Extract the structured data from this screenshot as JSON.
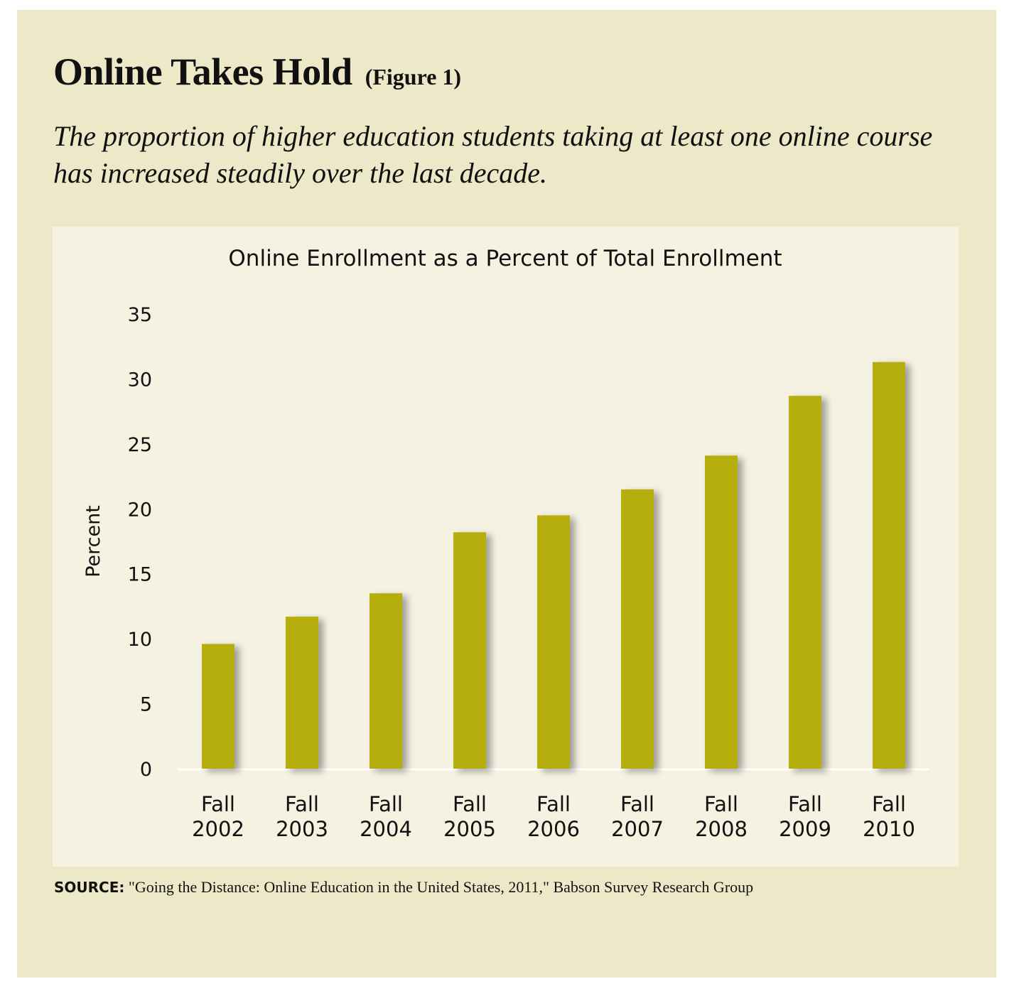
{
  "figure": {
    "title": "Online Takes Hold",
    "figure_label": "(Figure 1)",
    "subtitle": "The proportion of higher education students taking at least one online course has increased steadily over the last decade.",
    "source_label": "SOURCE:",
    "source_text": "\"Going the Distance: Online Education in the United States, 2011,\" Babson Survey Research Group"
  },
  "colors": {
    "panel": "#ede9c8",
    "chart_background": "#f5f2e2",
    "bar": "#b5ae08"
  },
  "chart_data": {
    "type": "bar",
    "title": "Online Enrollment as a Percent of Total Enrollment",
    "ylabel": "Percent",
    "xlabel": "",
    "ylim": [
      0,
      35
    ],
    "yticks": [
      0,
      5,
      10,
      15,
      20,
      25,
      30,
      35
    ],
    "grid": false,
    "categories": [
      [
        "Fall",
        "2002"
      ],
      [
        "Fall",
        "2003"
      ],
      [
        "Fall",
        "2004"
      ],
      [
        "Fall",
        "2005"
      ],
      [
        "Fall",
        "2006"
      ],
      [
        "Fall",
        "2007"
      ],
      [
        "Fall",
        "2008"
      ],
      [
        "Fall",
        "2009"
      ],
      [
        "Fall",
        "2010"
      ]
    ],
    "values": [
      9.6,
      11.7,
      13.5,
      18.2,
      19.5,
      21.5,
      24.1,
      28.7,
      31.3
    ]
  }
}
